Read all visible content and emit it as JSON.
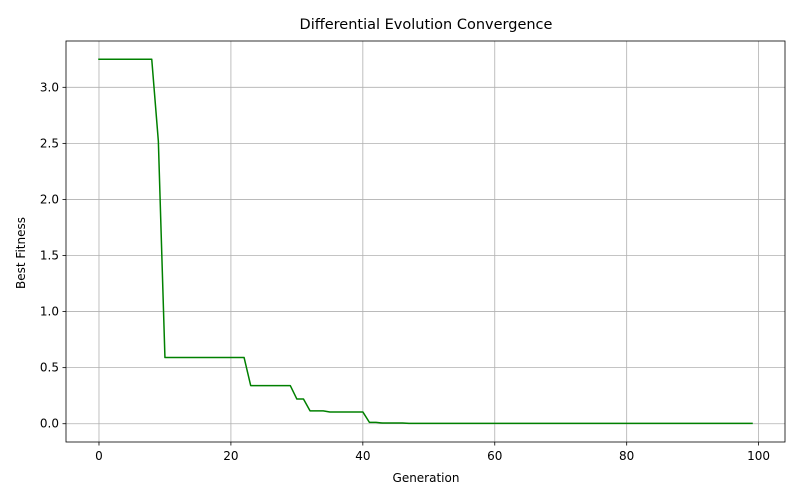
{
  "chart_data": {
    "type": "line",
    "title": "Differential Evolution Convergence",
    "xlabel": "Generation",
    "ylabel": "Best Fitness",
    "xlim": [
      -5,
      104
    ],
    "ylim": [
      -0.163,
      3.413
    ],
    "xticks": [
      0,
      20,
      40,
      60,
      80,
      100
    ],
    "xtick_labels": [
      "0",
      "20",
      "40",
      "60",
      "80",
      "100"
    ],
    "yticks": [
      0.0,
      0.5,
      1.0,
      1.5,
      2.0,
      2.5,
      3.0
    ],
    "ytick_labels": [
      "0.0",
      "0.5",
      "1.0",
      "1.5",
      "2.0",
      "2.5",
      "3.0"
    ],
    "grid": true,
    "legend": "none",
    "series": [
      {
        "color": "#008000",
        "x": [
          0,
          1,
          2,
          3,
          4,
          5,
          6,
          7,
          8,
          9,
          10,
          11,
          12,
          13,
          14,
          15,
          16,
          17,
          18,
          19,
          20,
          21,
          22,
          23,
          24,
          25,
          26,
          27,
          28,
          29,
          30,
          31,
          32,
          33,
          34,
          35,
          36,
          37,
          38,
          39,
          40,
          41,
          42,
          43,
          44,
          45,
          46,
          47,
          48,
          49,
          50,
          51,
          52,
          53,
          54,
          55,
          56,
          57,
          58,
          59,
          60,
          61,
          62,
          63,
          64,
          65,
          66,
          67,
          68,
          69,
          70,
          71,
          72,
          73,
          74,
          75,
          76,
          77,
          78,
          79,
          80,
          81,
          82,
          83,
          84,
          85,
          86,
          87,
          88,
          89,
          90,
          91,
          92,
          93,
          94,
          95,
          96,
          97,
          98,
          99
        ],
        "y": [
          3.25,
          3.25,
          3.25,
          3.25,
          3.25,
          3.25,
          3.25,
          3.25,
          3.25,
          2.52,
          0.59,
          0.59,
          0.59,
          0.59,
          0.59,
          0.59,
          0.59,
          0.59,
          0.59,
          0.59,
          0.59,
          0.59,
          0.59,
          0.34,
          0.34,
          0.34,
          0.34,
          0.34,
          0.34,
          0.34,
          0.22,
          0.22,
          0.115,
          0.115,
          0.115,
          0.105,
          0.105,
          0.105,
          0.105,
          0.105,
          0.105,
          0.012,
          0.012,
          0.006,
          0.006,
          0.006,
          0.006,
          0.003,
          0.003,
          0.003,
          0.003,
          0.003,
          0.003,
          0.003,
          0.003,
          0.003,
          0.003,
          0.003,
          0.003,
          0.003,
          0.003,
          0.003,
          0.003,
          0.003,
          0.003,
          0.003,
          0.003,
          0.003,
          0.003,
          0.003,
          0.003,
          0.003,
          0.003,
          0.003,
          0.003,
          0.003,
          0.003,
          0.003,
          0.003,
          0.003,
          0.003,
          0.003,
          0.003,
          0.003,
          0.003,
          0.003,
          0.003,
          0.003,
          0.003,
          0.003,
          0.003,
          0.003,
          0.003,
          0.003,
          0.003,
          0.003,
          0.003,
          0.003,
          0.003,
          0.003
        ]
      }
    ]
  }
}
